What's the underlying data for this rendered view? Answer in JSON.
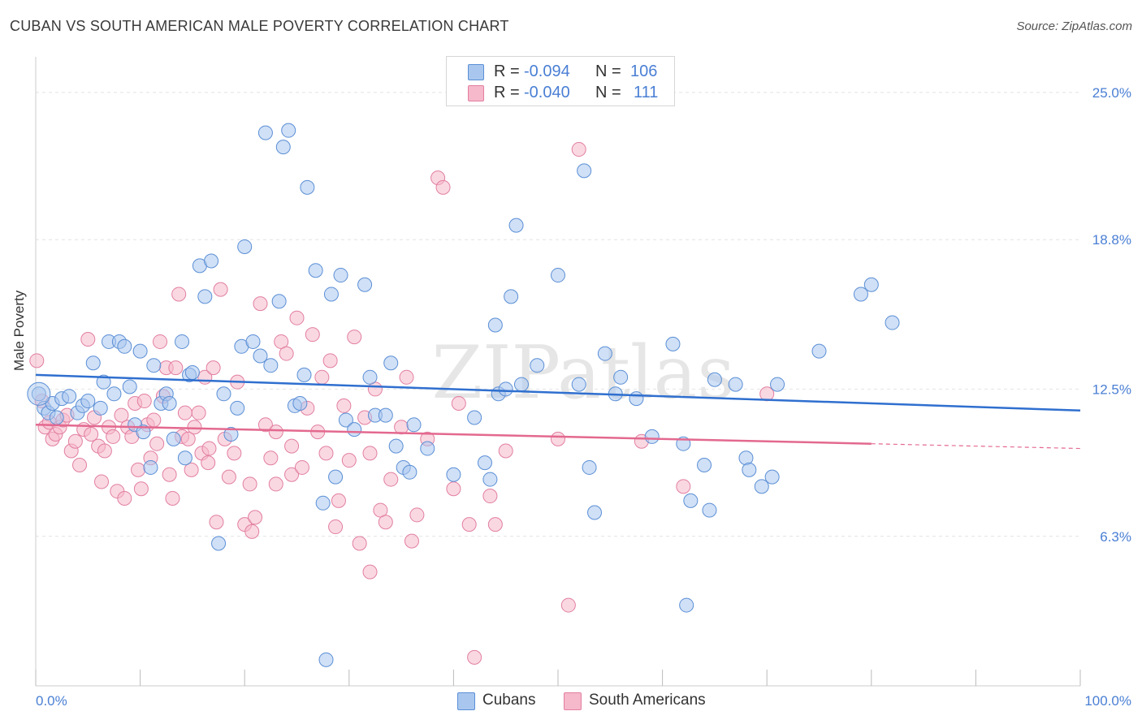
{
  "header": {
    "title": "CUBAN VS SOUTH AMERICAN MALE POVERTY CORRELATION CHART",
    "source": "Source: ZipAtlas.com"
  },
  "legend": {
    "rows": [
      {
        "r_label": "R =",
        "r_value": "-0.094",
        "n_label": "N =",
        "n_value": "106",
        "color": "#a9c7ee"
      },
      {
        "r_label": "R =",
        "r_value": "-0.040",
        "n_label": "N =",
        "n_value": "111",
        "color": "#f6b8cb"
      }
    ]
  },
  "bottom_legend": {
    "items": [
      {
        "label": "Cubans",
        "color": "#a9c7ee"
      },
      {
        "label": "South Americans",
        "color": "#f6b8cb"
      }
    ]
  },
  "chart_data": {
    "type": "scatter",
    "title": "CUBAN VS SOUTH AMERICAN MALE POVERTY CORRELATION CHART",
    "xlabel": "",
    "ylabel": "Male Poverty",
    "xlim": [
      0,
      100
    ],
    "ylim": [
      0,
      26.5
    ],
    "y_ticks": [
      6.3,
      12.5,
      18.8,
      25.0
    ],
    "y_tick_labels": [
      "6.3%",
      "12.5%",
      "18.8%",
      "25.0%"
    ],
    "x_tick_labels": [
      "0.0%",
      "100.0%"
    ],
    "grid": true,
    "legend_position": "top-center",
    "watermark": "ZIPatlas",
    "colors": {
      "cubans_fill": "#a9c7ee",
      "cubans_stroke": "#5b8fd6",
      "cubans_line": "#2f6fcf",
      "sa_fill": "#f6b8cb",
      "sa_stroke": "#e27fa0",
      "sa_line": "#e3698f",
      "axis_text": "#4a7fd4"
    },
    "series": [
      {
        "name": "Cubans",
        "trend": {
          "x": [
            0,
            100
          ],
          "y": [
            13.1,
            11.6
          ]
        },
        "points": [
          [
            0.3,
            12.3
          ],
          [
            0.8,
            11.7
          ],
          [
            1.2,
            11.5
          ],
          [
            1.6,
            11.9
          ],
          [
            2.0,
            11.3
          ],
          [
            2.5,
            12.1
          ],
          [
            3.2,
            12.2
          ],
          [
            4.0,
            11.5
          ],
          [
            4.5,
            11.8
          ],
          [
            5.0,
            12.0
          ],
          [
            5.5,
            13.6
          ],
          [
            6.2,
            11.7
          ],
          [
            6.5,
            12.8
          ],
          [
            7.0,
            14.5
          ],
          [
            7.5,
            12.3
          ],
          [
            8.0,
            14.5
          ],
          [
            8.5,
            14.3
          ],
          [
            9.0,
            12.6
          ],
          [
            9.5,
            11.0
          ],
          [
            10.0,
            14.1
          ],
          [
            10.3,
            10.7
          ],
          [
            11.0,
            9.2
          ],
          [
            11.3,
            13.5
          ],
          [
            12.0,
            11.9
          ],
          [
            12.5,
            12.3
          ],
          [
            12.8,
            11.9
          ],
          [
            13.2,
            10.4
          ],
          [
            14.0,
            14.5
          ],
          [
            14.3,
            9.6
          ],
          [
            14.7,
            13.1
          ],
          [
            15.0,
            13.2
          ],
          [
            15.7,
            17.7
          ],
          [
            16.2,
            16.4
          ],
          [
            16.8,
            17.9
          ],
          [
            17.5,
            6.0
          ],
          [
            18.0,
            12.3
          ],
          [
            18.7,
            10.6
          ],
          [
            19.3,
            11.7
          ],
          [
            19.7,
            14.3
          ],
          [
            20.0,
            18.5
          ],
          [
            20.8,
            14.5
          ],
          [
            21.5,
            13.9
          ],
          [
            22.0,
            23.3
          ],
          [
            22.5,
            13.5
          ],
          [
            23.3,
            16.2
          ],
          [
            23.7,
            22.7
          ],
          [
            24.2,
            23.4
          ],
          [
            24.8,
            11.8
          ],
          [
            25.3,
            11.9
          ],
          [
            25.7,
            13.1
          ],
          [
            26.0,
            21.0
          ],
          [
            26.8,
            17.5
          ],
          [
            27.5,
            7.7
          ],
          [
            27.8,
            1.1
          ],
          [
            28.3,
            16.5
          ],
          [
            28.7,
            8.8
          ],
          [
            29.2,
            17.3
          ],
          [
            29.7,
            11.2
          ],
          [
            30.5,
            10.8
          ],
          [
            31.5,
            16.9
          ],
          [
            32.0,
            13.0
          ],
          [
            32.5,
            11.4
          ],
          [
            33.5,
            11.4
          ],
          [
            34.0,
            13.6
          ],
          [
            34.5,
            10.1
          ],
          [
            35.2,
            9.2
          ],
          [
            35.8,
            9.0
          ],
          [
            36.2,
            11.0
          ],
          [
            37.5,
            10.0
          ],
          [
            40.0,
            8.9
          ],
          [
            42.0,
            11.3
          ],
          [
            43.0,
            9.4
          ],
          [
            43.5,
            8.7
          ],
          [
            44.0,
            15.2
          ],
          [
            44.3,
            12.3
          ],
          [
            45.0,
            12.5
          ],
          [
            45.5,
            16.4
          ],
          [
            46.0,
            19.4
          ],
          [
            46.5,
            12.7
          ],
          [
            48.0,
            13.5
          ],
          [
            50.0,
            17.3
          ],
          [
            52.0,
            12.7
          ],
          [
            52.5,
            21.7
          ],
          [
            53.0,
            9.2
          ],
          [
            53.5,
            7.3
          ],
          [
            54.5,
            14.0
          ],
          [
            55.5,
            12.3
          ],
          [
            56.0,
            13.0
          ],
          [
            57.5,
            12.1
          ],
          [
            59.0,
            10.5
          ],
          [
            61.0,
            14.4
          ],
          [
            62.0,
            10.2
          ],
          [
            62.3,
            3.4
          ],
          [
            62.7,
            7.8
          ],
          [
            64.0,
            9.3
          ],
          [
            64.5,
            7.4
          ],
          [
            65.0,
            12.9
          ],
          [
            67.0,
            12.7
          ],
          [
            68.0,
            9.6
          ],
          [
            68.3,
            9.1
          ],
          [
            69.5,
            8.4
          ],
          [
            70.5,
            8.8
          ],
          [
            71.0,
            12.7
          ],
          [
            75.0,
            14.1
          ],
          [
            79.0,
            16.5
          ],
          [
            80.0,
            16.9
          ],
          [
            82.0,
            15.3
          ]
        ]
      },
      {
        "name": "South Americans",
        "trend": {
          "x": [
            0,
            80
          ],
          "y": [
            11.0,
            10.2
          ],
          "dashed_to": [
            100,
            10.0
          ]
        },
        "points": [
          [
            0.1,
            13.7
          ],
          [
            0.6,
            12.0
          ],
          [
            0.9,
            10.9
          ],
          [
            1.3,
            11.1
          ],
          [
            1.6,
            10.4
          ],
          [
            1.9,
            10.6
          ],
          [
            2.3,
            10.9
          ],
          [
            2.6,
            11.2
          ],
          [
            3.0,
            11.4
          ],
          [
            3.4,
            9.9
          ],
          [
            3.8,
            10.3
          ],
          [
            4.2,
            9.3
          ],
          [
            4.6,
            10.8
          ],
          [
            5.0,
            14.6
          ],
          [
            5.3,
            10.6
          ],
          [
            5.6,
            11.3
          ],
          [
            6.0,
            10.1
          ],
          [
            6.3,
            8.6
          ],
          [
            6.6,
            9.9
          ],
          [
            7.0,
            10.9
          ],
          [
            7.4,
            10.5
          ],
          [
            7.8,
            8.2
          ],
          [
            8.2,
            11.4
          ],
          [
            8.5,
            7.9
          ],
          [
            8.8,
            10.9
          ],
          [
            9.2,
            10.5
          ],
          [
            9.5,
            11.9
          ],
          [
            9.8,
            9.1
          ],
          [
            10.1,
            8.3
          ],
          [
            10.4,
            12.0
          ],
          [
            10.7,
            11.0
          ],
          [
            11.0,
            9.6
          ],
          [
            11.3,
            11.2
          ],
          [
            11.6,
            10.2
          ],
          [
            11.9,
            14.5
          ],
          [
            12.2,
            12.2
          ],
          [
            12.5,
            13.4
          ],
          [
            12.8,
            8.9
          ],
          [
            13.1,
            7.9
          ],
          [
            13.4,
            13.4
          ],
          [
            13.7,
            16.5
          ],
          [
            14.0,
            10.5
          ],
          [
            14.3,
            11.5
          ],
          [
            14.6,
            10.4
          ],
          [
            14.9,
            9.1
          ],
          [
            15.2,
            10.9
          ],
          [
            15.6,
            11.5
          ],
          [
            15.9,
            9.8
          ],
          [
            16.2,
            13.0
          ],
          [
            16.6,
            10.0
          ],
          [
            17.0,
            13.4
          ],
          [
            17.3,
            6.9
          ],
          [
            17.7,
            16.7
          ],
          [
            18.1,
            10.4
          ],
          [
            18.5,
            8.8
          ],
          [
            19.0,
            9.8
          ],
          [
            19.3,
            12.8
          ],
          [
            20.0,
            6.8
          ],
          [
            20.5,
            8.5
          ],
          [
            21.0,
            7.1
          ],
          [
            21.5,
            16.1
          ],
          [
            22.0,
            11.0
          ],
          [
            22.5,
            9.6
          ],
          [
            23.0,
            10.7
          ],
          [
            23.5,
            14.5
          ],
          [
            24.0,
            14.0
          ],
          [
            24.5,
            8.9
          ],
          [
            25.0,
            15.5
          ],
          [
            25.5,
            9.2
          ],
          [
            26.0,
            11.7
          ],
          [
            26.5,
            14.8
          ],
          [
            27.0,
            10.7
          ],
          [
            27.4,
            13.0
          ],
          [
            27.8,
            9.8
          ],
          [
            28.2,
            13.7
          ],
          [
            28.7,
            6.7
          ],
          [
            29.0,
            7.8
          ],
          [
            29.5,
            11.8
          ],
          [
            30.0,
            9.5
          ],
          [
            30.5,
            14.7
          ],
          [
            31.0,
            6.0
          ],
          [
            31.5,
            11.3
          ],
          [
            32.0,
            9.8
          ],
          [
            32.5,
            12.5
          ],
          [
            33.0,
            7.4
          ],
          [
            33.5,
            6.9
          ],
          [
            34.0,
            8.7
          ],
          [
            35.0,
            10.9
          ],
          [
            35.5,
            13.0
          ],
          [
            36.0,
            6.1
          ],
          [
            36.5,
            7.2
          ],
          [
            37.5,
            10.4
          ],
          [
            38.5,
            21.4
          ],
          [
            39.0,
            21.0
          ],
          [
            40.0,
            8.3
          ],
          [
            40.5,
            11.9
          ],
          [
            41.5,
            6.8
          ],
          [
            42.0,
            1.2
          ],
          [
            43.5,
            8.0
          ],
          [
            45.0,
            9.9
          ],
          [
            50.0,
            10.4
          ],
          [
            51.0,
            3.4
          ],
          [
            52.0,
            22.6
          ],
          [
            58.0,
            10.3
          ],
          [
            62.0,
            8.4
          ],
          [
            70.0,
            12.3
          ],
          [
            24.5,
            10.1
          ],
          [
            16.5,
            9.4
          ],
          [
            32.0,
            4.8
          ],
          [
            23.0,
            8.5
          ],
          [
            44.0,
            6.8
          ],
          [
            20.7,
            6.5
          ]
        ]
      }
    ]
  }
}
